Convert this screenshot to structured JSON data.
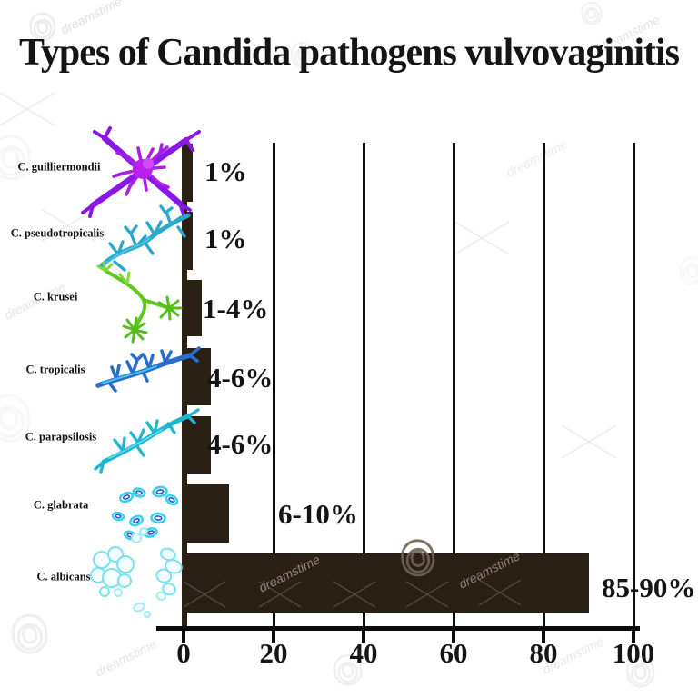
{
  "title": "Types of Candida pathogens vulvovaginitis",
  "watermark": {
    "text": "dreamstime",
    "logo": "spiral-logo"
  },
  "chart_data": {
    "type": "bar",
    "orientation": "horizontal",
    "title": "Types of Candida pathogens vulvovaginitis",
    "categories": [
      "C. guilliermondii",
      "C. pseudotropicalis",
      "C. krusei",
      "C. tropicalis",
      "C. parapsilosis",
      "C. glabrata",
      "C. albicans"
    ],
    "value_labels": [
      "1%",
      "1%",
      "1-4%",
      "4-6%",
      "4-6%",
      "6-10%",
      "85-90%"
    ],
    "values": [
      1,
      1,
      4,
      6,
      6,
      10,
      90
    ],
    "value_ranges": [
      [
        1,
        1
      ],
      [
        1,
        1
      ],
      [
        1,
        4
      ],
      [
        4,
        6
      ],
      [
        4,
        6
      ],
      [
        6,
        10
      ],
      [
        85,
        90
      ]
    ],
    "x_ticks": [
      "0",
      "20",
      "40",
      "60",
      "80",
      "100"
    ],
    "xlim": [
      0,
      100
    ],
    "xlabel": "",
    "ylabel": "",
    "grid": "vertical gridlines at each x tick",
    "legend": "none",
    "bar_color": "#2A2015",
    "axis_color": "#0B0B0B",
    "organism_colors": {
      "C. guilliermondii": "#9A1FE0",
      "C. pseudotropicalis": "#2BA7CB",
      "C. krusei": "#5FC71F",
      "C. tropicalis": "#2B6DCB",
      "C. parapsilosis": "#1EB6D0",
      "C. glabrata": "#38D4EC",
      "C. albicans": "#7AE1F0"
    }
  }
}
